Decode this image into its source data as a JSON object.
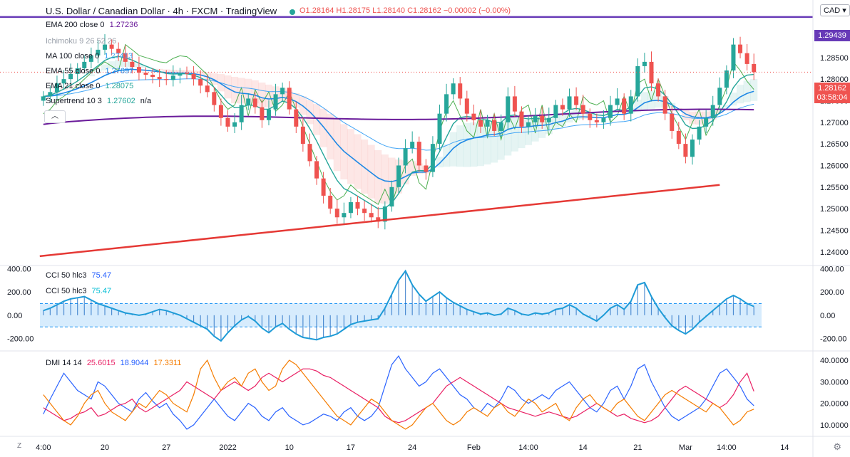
{
  "header": {
    "title": "U.S. Dollar / Canadian Dollar · 4h · FXCM · TradingView",
    "ohlc": "O1.28164 H1.28175 L1.28140 C1.28162 −0.00002 (−0.00%)",
    "currency": "CAD"
  },
  "price_tags": {
    "level": "1.29439",
    "last": "1.28162",
    "countdown": "03:58:04"
  },
  "legends": {
    "ema200": {
      "label": "EMA 200 close 0",
      "value": "1.27236"
    },
    "ichimoku": {
      "label": "Ichimoku 9 26 52 26",
      "value": ""
    },
    "ma100": {
      "label": "MA 100 close 0",
      "value": "1.27413"
    },
    "ema55": {
      "label": "EMA 55 close 0",
      "value": "1.27697"
    },
    "ema21": {
      "label": "EMA 21 close 0",
      "value": "1.28075"
    },
    "supertrend": {
      "label": "Supertrend 10 3",
      "value": "1.27602",
      "extra": "n/a"
    },
    "cci1": {
      "label": "CCI 50 hlc3",
      "value": "75.47"
    },
    "cci2": {
      "label": "CCI 50 hlc3",
      "value": "75.47"
    },
    "dmi": {
      "label": "DMI 14 14",
      "v1": "25.6015",
      "v2": "18.9044",
      "v3": "17.3311"
    }
  },
  "controls": {
    "zoom": "Z",
    "settings_icon": "gear-icon"
  },
  "colors": {
    "up": "#26a69a",
    "down": "#ef5350",
    "ema200": "#6a1b9a",
    "ma100": "#42a5f5",
    "ema55": "#1e88e5",
    "ema21": "#26a69a",
    "hline": "#673ab7",
    "trend": "#e53935",
    "cci": "#2196f3",
    "dmi_plus": "#2962ff",
    "dmi_minus": "#e91e63",
    "adx": "#f57c00"
  },
  "chart_data": [
    {
      "type": "candlestick",
      "title": "U.S. Dollar / Canadian Dollar · 4h · FXCM",
      "x_ticks": [
        "4:00",
        "20",
        "27",
        "2022",
        "10",
        "17",
        "24",
        "Feb",
        "14:00",
        "14",
        "21",
        "Mar",
        "14:00",
        "14"
      ],
      "y_ticks": [
        "1.29000",
        "1.28500",
        "1.28000",
        "1.27500",
        "1.27000",
        "1.26500",
        "1.26000",
        "1.25500",
        "1.25000",
        "1.24500",
        "1.24000"
      ],
      "ylim": [
        1.237,
        1.297
      ],
      "horizontal_line": 1.29439,
      "trendline": [
        [
          0,
          1.239
        ],
        [
          99,
          1.2555
        ]
      ],
      "close": [
        1.276,
        1.277,
        1.279,
        1.28,
        1.2812,
        1.2825,
        1.284,
        1.2855,
        1.2868,
        1.288,
        1.287,
        1.286,
        1.284,
        1.2828,
        1.2815,
        1.281,
        1.2805,
        1.28,
        1.2798,
        1.2808,
        1.2814,
        1.2812,
        1.28,
        1.2785,
        1.277,
        1.274,
        1.271,
        1.269,
        1.27,
        1.274,
        1.2755,
        1.2735,
        1.2705,
        1.273,
        1.2765,
        1.278,
        1.273,
        1.269,
        1.265,
        1.261,
        1.257,
        1.253,
        1.25,
        1.248,
        1.249,
        1.2515,
        1.25,
        1.249,
        1.248,
        1.247,
        1.2505,
        1.255,
        1.26,
        1.264,
        1.2655,
        1.26,
        1.2585,
        1.265,
        1.272,
        1.2765,
        1.279,
        1.2755,
        1.272,
        1.2705,
        1.269,
        1.2705,
        1.268,
        1.27,
        1.276,
        1.2725,
        1.269,
        1.27,
        1.2715,
        1.27,
        1.271,
        1.274,
        1.273,
        1.276,
        1.274,
        1.272,
        1.2705,
        1.27,
        1.271,
        1.274,
        1.2755,
        1.272,
        1.276,
        1.283,
        1.284,
        1.279,
        1.276,
        1.272,
        1.268,
        1.265,
        1.262,
        1.266,
        1.269,
        1.271,
        1.274,
        1.278,
        1.282,
        1.288,
        1.286,
        1.2835,
        1.2816
      ],
      "ema200_start": 1.2695,
      "ema200_end": 1.27236,
      "ma100_end": 1.27413,
      "ema55_end": 1.27697,
      "ema21_end": 1.28075
    },
    {
      "type": "line",
      "title": "CCI 50 hlc3",
      "y_ticks": [
        "400.00",
        "200.00",
        "0.00",
        "-200.00"
      ],
      "ylim": [
        -300,
        420
      ],
      "band": [
        -100,
        100
      ],
      "values": [
        40,
        60,
        90,
        120,
        140,
        150,
        160,
        130,
        100,
        80,
        60,
        40,
        20,
        10,
        0,
        10,
        30,
        50,
        40,
        20,
        0,
        -30,
        -60,
        -90,
        -120,
        -180,
        -220,
        -150,
        -90,
        -40,
        -10,
        -50,
        -110,
        -150,
        -100,
        -70,
        -120,
        -160,
        -190,
        -200,
        -210,
        -190,
        -180,
        -160,
        -120,
        -80,
        -60,
        -50,
        -40,
        -30,
        60,
        180,
        300,
        380,
        260,
        180,
        120,
        160,
        200,
        150,
        110,
        80,
        50,
        30,
        10,
        20,
        0,
        10,
        60,
        40,
        10,
        0,
        20,
        10,
        20,
        50,
        60,
        90,
        60,
        10,
        -20,
        -50,
        0,
        60,
        90,
        50,
        120,
        260,
        280,
        160,
        60,
        -20,
        -90,
        -130,
        -160,
        -120,
        -60,
        -10,
        40,
        90,
        140,
        170,
        140,
        100,
        75.47
      ]
    },
    {
      "type": "line",
      "title": "DMI 14 14",
      "y_ticks": [
        "40.0000",
        "30.0000",
        "20.0000",
        "10.0000"
      ],
      "ylim": [
        5,
        44
      ],
      "series": [
        {
          "name": "+DI",
          "values": [
            15,
            22,
            28,
            34,
            30,
            26,
            24,
            22,
            30,
            28,
            24,
            20,
            18,
            16,
            22,
            25,
            21,
            18,
            20,
            15,
            12,
            8,
            10,
            14,
            18,
            22,
            18,
            14,
            12,
            16,
            20,
            18,
            14,
            12,
            16,
            18,
            14,
            12,
            10,
            11,
            13,
            15,
            14,
            12,
            16,
            18,
            14,
            12,
            14,
            18,
            28,
            38,
            42,
            36,
            32,
            28,
            30,
            34,
            36,
            32,
            28,
            24,
            22,
            18,
            16,
            20,
            18,
            22,
            28,
            26,
            22,
            20,
            22,
            24,
            22,
            26,
            28,
            30,
            26,
            22,
            18,
            16,
            20,
            26,
            28,
            22,
            28,
            36,
            38,
            30,
            24,
            18,
            14,
            12,
            14,
            16,
            18,
            22,
            28,
            34,
            36,
            32,
            28,
            22,
            18.9
          ]
        },
        {
          "name": "-DI",
          "values": [
            18,
            16,
            14,
            12,
            13,
            15,
            16,
            18,
            14,
            15,
            17,
            19,
            20,
            22,
            18,
            16,
            18,
            20,
            22,
            24,
            26,
            30,
            28,
            26,
            24,
            22,
            26,
            28,
            30,
            28,
            26,
            28,
            32,
            34,
            32,
            30,
            32,
            34,
            36,
            36,
            35,
            33,
            32,
            30,
            28,
            26,
            24,
            22,
            20,
            18,
            14,
            12,
            11,
            12,
            14,
            16,
            18,
            20,
            24,
            28,
            30,
            32,
            30,
            28,
            26,
            24,
            22,
            20,
            18,
            17,
            16,
            15,
            14,
            15,
            16,
            15,
            14,
            13,
            14,
            16,
            18,
            20,
            18,
            16,
            14,
            15,
            13,
            12,
            11,
            12,
            14,
            18,
            22,
            26,
            28,
            26,
            24,
            22,
            20,
            18,
            20,
            24,
            30,
            34,
            25.6
          ]
        },
        {
          "name": "ADX",
          "values": [
            24,
            20,
            16,
            12,
            10,
            14,
            20,
            24,
            26,
            20,
            16,
            14,
            12,
            16,
            20,
            18,
            22,
            26,
            24,
            20,
            18,
            16,
            24,
            36,
            40,
            32,
            26,
            30,
            32,
            28,
            34,
            36,
            30,
            26,
            28,
            36,
            40,
            38,
            34,
            30,
            26,
            22,
            18,
            14,
            12,
            10,
            14,
            18,
            22,
            20,
            16,
            12,
            10,
            8,
            10,
            14,
            18,
            20,
            16,
            12,
            10,
            12,
            16,
            18,
            16,
            14,
            18,
            20,
            16,
            14,
            18,
            22,
            20,
            16,
            18,
            20,
            14,
            12,
            18,
            22,
            24,
            20,
            18,
            16,
            20,
            22,
            18,
            14,
            12,
            16,
            20,
            24,
            26,
            24,
            22,
            20,
            18,
            16,
            20,
            18,
            14,
            10,
            12,
            16,
            17.3
          ]
        }
      ]
    }
  ]
}
